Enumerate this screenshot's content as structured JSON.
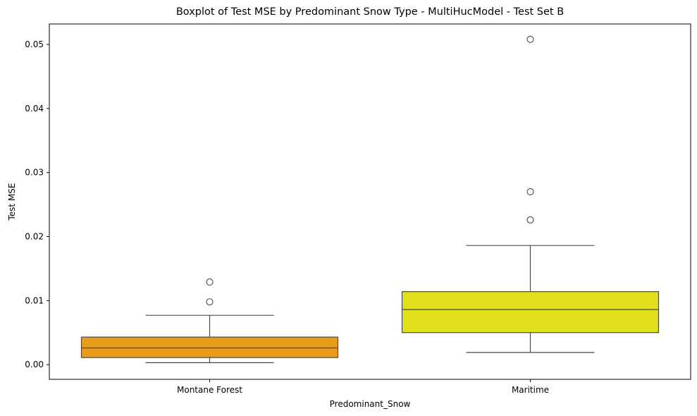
{
  "chart_data": {
    "type": "boxplot",
    "title": "Boxplot of Test MSE by Predominant Snow Type - MultiHucModel - Test Set B",
    "xlabel": "Predominant_Snow",
    "ylabel": "Test MSE",
    "ylim": [
      -0.0023,
      0.0532
    ],
    "yticks": [
      0.0,
      0.01,
      0.02,
      0.03,
      0.04,
      0.05
    ],
    "ytick_labels": [
      "0.00",
      "0.01",
      "0.02",
      "0.03",
      "0.04",
      "0.05"
    ],
    "grid": false,
    "categories": [
      "Montane Forest",
      "Maritime"
    ],
    "boxes": [
      {
        "category": "Montane Forest",
        "color": "#e99b1c",
        "whisker_low": 0.0003,
        "q1": 0.0011,
        "median": 0.0026,
        "q3": 0.0043,
        "whisker_high": 0.0077,
        "outliers": [
          0.0098,
          0.0129
        ]
      },
      {
        "category": "Maritime",
        "color": "#e0e01c",
        "whisker_low": 0.0019,
        "q1": 0.005,
        "median": 0.0086,
        "q3": 0.0114,
        "whisker_high": 0.0186,
        "outliers": [
          0.0226,
          0.027,
          0.0508
        ]
      }
    ]
  }
}
